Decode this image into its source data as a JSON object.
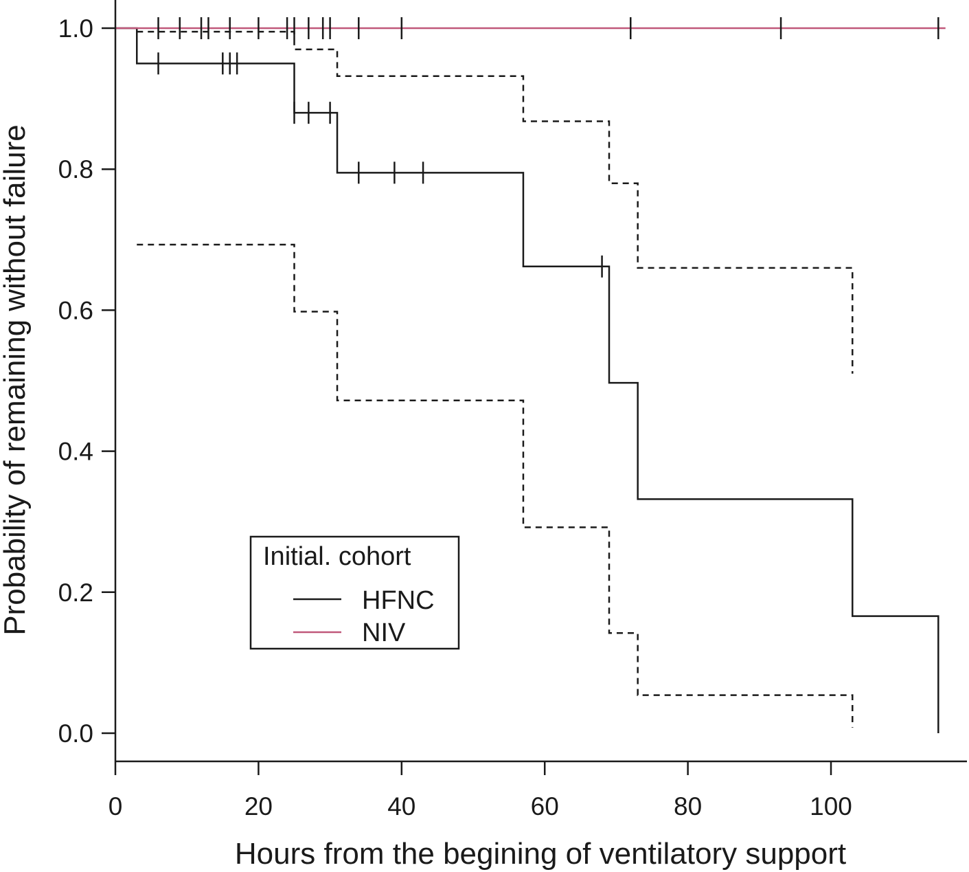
{
  "chart_data": {
    "type": "line",
    "subtype": "kaplan-meier",
    "xlabel": "Hours from the begining of ventilatory support",
    "ylabel": "Probability of remaining without failure",
    "xlim": [
      0,
      119
    ],
    "ylim": [
      -0.04,
      1.04
    ],
    "xticks": [
      0,
      20,
      40,
      60,
      80,
      100
    ],
    "xtick_labels": [
      "0",
      "20",
      "40",
      "60",
      "80",
      "100"
    ],
    "yticks": [
      0.0,
      0.2,
      0.4,
      0.6,
      0.8,
      1.0
    ],
    "ytick_labels": [
      "0.0",
      "0.2",
      "0.4",
      "0.6",
      "0.8",
      "1.0"
    ],
    "grid": false,
    "legend": {
      "title": "Initial. cohort",
      "placement": "lower-left",
      "entries": [
        "HFNC",
        "NIV"
      ]
    },
    "series": [
      {
        "name": "HFNC",
        "color": "#1a1a1a",
        "style": "solid",
        "steps": [
          [
            0,
            1.0
          ],
          [
            3,
            0.95
          ],
          [
            25,
            0.88
          ],
          [
            31,
            0.795
          ],
          [
            57,
            0.662
          ],
          [
            69,
            0.497
          ],
          [
            73,
            0.332
          ],
          [
            103,
            0.166
          ],
          [
            115,
            0.0
          ]
        ],
        "end_x": 115,
        "censor_x": [
          6,
          15,
          16,
          17,
          25,
          27,
          30,
          34,
          39,
          43,
          68
        ]
      },
      {
        "name": "",
        "role": "HFNC 95% CI upper",
        "color": "#1a1a1a",
        "style": "dashed",
        "steps": [
          [
            3,
            0.995
          ],
          [
            25,
            0.97
          ],
          [
            31,
            0.932
          ],
          [
            57,
            0.868
          ],
          [
            69,
            0.78
          ],
          [
            73,
            0.66
          ],
          [
            103,
            0.51
          ]
        ],
        "end_x": 103
      },
      {
        "name": "",
        "role": "HFNC 95% CI lower",
        "color": "#1a1a1a",
        "style": "dashed",
        "steps": [
          [
            3,
            0.693
          ],
          [
            25,
            0.598
          ],
          [
            31,
            0.472
          ],
          [
            57,
            0.292
          ],
          [
            69,
            0.142
          ],
          [
            73,
            0.054
          ],
          [
            103,
            0.008
          ]
        ],
        "end_x": 103
      },
      {
        "name": "NIV",
        "color": "#c0587a",
        "style": "solid",
        "steps": [
          [
            0,
            1.0
          ]
        ],
        "end_x": 116,
        "censor_x": [
          6,
          9,
          12,
          13,
          16,
          20,
          24,
          25,
          27,
          29,
          30,
          34,
          40,
          72,
          93,
          115
        ]
      }
    ]
  }
}
